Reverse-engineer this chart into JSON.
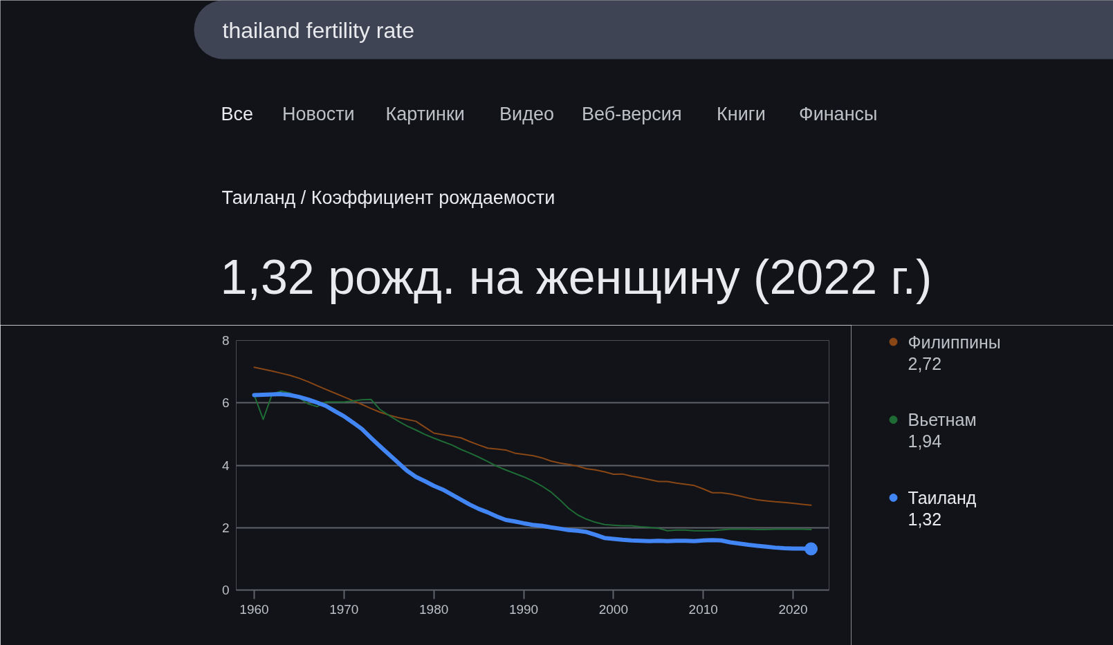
{
  "chart_data": {
    "type": "line",
    "title": "1,32 рожд. на женщину (2022 г.)",
    "subtitle": "Таиланд / Коэффициент рождаемости",
    "annotations": [
      "thailand fertility rate",
      "Все",
      "Новости",
      "Картинки",
      "Видео",
      "Веб-версия",
      "Книги",
      "Финансы",
      "2,72",
      "1,94",
      "1,32"
    ],
    "x": [
      1960,
      1961,
      1962,
      1963,
      1964,
      1965,
      1966,
      1967,
      1968,
      1969,
      1970,
      1971,
      1972,
      1973,
      1974,
      1975,
      1976,
      1977,
      1978,
      1979,
      1980,
      1981,
      1982,
      1983,
      1984,
      1985,
      1986,
      1987,
      1988,
      1989,
      1990,
      1991,
      1992,
      1993,
      1994,
      1995,
      1996,
      1997,
      1998,
      1999,
      2000,
      2001,
      2002,
      2003,
      2004,
      2005,
      2006,
      2007,
      2008,
      2009,
      2010,
      2011,
      2012,
      2013,
      2014,
      2015,
      2016,
      2017,
      2018,
      2019,
      2020,
      2021,
      2022
    ],
    "series": [
      {
        "name": "Филиппины",
        "color": "#8a4716",
        "values": [
          7.14,
          7.08,
          7.02,
          6.95,
          6.88,
          6.79,
          6.68,
          6.55,
          6.43,
          6.31,
          6.19,
          6.07,
          5.95,
          5.82,
          5.7,
          5.61,
          5.53,
          5.47,
          5.41,
          5.22,
          5.03,
          4.98,
          4.93,
          4.88,
          4.76,
          4.65,
          4.55,
          4.52,
          4.49,
          4.39,
          4.35,
          4.31,
          4.24,
          4.14,
          4.07,
          4.03,
          3.97,
          3.89,
          3.85,
          3.79,
          3.71,
          3.72,
          3.65,
          3.6,
          3.54,
          3.48,
          3.48,
          3.43,
          3.39,
          3.35,
          3.24,
          3.12,
          3.12,
          3.08,
          3.02,
          2.95,
          2.89,
          2.86,
          2.83,
          2.81,
          2.78,
          2.75,
          2.72
        ]
      },
      {
        "name": "Вьетнам",
        "color": "#1f6b35",
        "values": [
          6.25,
          5.47,
          6.28,
          6.38,
          6.31,
          6.16,
          5.97,
          5.88,
          6.03,
          6.03,
          6.03,
          6.06,
          6.1,
          6.11,
          5.79,
          5.6,
          5.42,
          5.26,
          5.13,
          4.99,
          4.87,
          4.76,
          4.65,
          4.51,
          4.39,
          4.26,
          4.12,
          3.97,
          3.85,
          3.74,
          3.63,
          3.5,
          3.34,
          3.15,
          2.9,
          2.62,
          2.41,
          2.27,
          2.17,
          2.1,
          2.08,
          2.06,
          2.06,
          2.03,
          2.01,
          1.98,
          1.9,
          1.92,
          1.92,
          1.9,
          1.9,
          1.9,
          1.93,
          1.95,
          1.95,
          1.95,
          1.94,
          1.94,
          1.95,
          1.95,
          1.95,
          1.95,
          1.94
        ]
      },
      {
        "name": "Таиланд",
        "color": "#4285f4",
        "values": [
          6.25,
          6.26,
          6.27,
          6.28,
          6.25,
          6.19,
          6.11,
          6.01,
          5.9,
          5.73,
          5.57,
          5.37,
          5.16,
          4.88,
          4.61,
          4.35,
          4.09,
          3.83,
          3.63,
          3.49,
          3.34,
          3.22,
          3.06,
          2.9,
          2.74,
          2.6,
          2.49,
          2.36,
          2.25,
          2.2,
          2.14,
          2.09,
          2.06,
          2.01,
          1.97,
          1.92,
          1.9,
          1.86,
          1.77,
          1.67,
          1.64,
          1.61,
          1.59,
          1.58,
          1.57,
          1.58,
          1.57,
          1.58,
          1.58,
          1.57,
          1.59,
          1.6,
          1.59,
          1.53,
          1.49,
          1.45,
          1.42,
          1.39,
          1.36,
          1.34,
          1.33,
          1.33,
          1.32
        ]
      },
      {
        "type": "scatter",
        "x": [
          2022
        ],
        "values": [
          1.32
        ],
        "color": "#4285f4",
        "marker": "circle"
      }
    ],
    "xlim": [
      1958,
      2024
    ],
    "xticks": [
      1960,
      1970,
      1980,
      1990,
      2000,
      2010,
      2020
    ],
    "ylim": [
      0,
      8
    ],
    "yticks": [
      0,
      2,
      4,
      6,
      8
    ],
    "grid": "y",
    "legend": "right",
    "marker": "none",
    "line_style": "solid"
  }
}
